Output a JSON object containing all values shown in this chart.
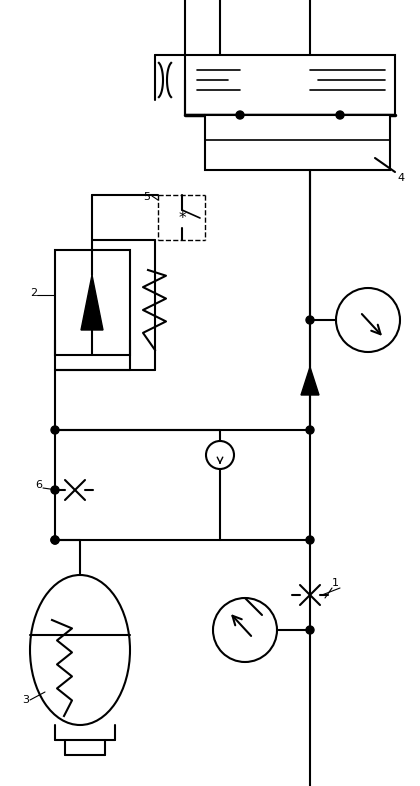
{
  "bg_color": "#ffffff",
  "line_color": "#000000",
  "lw": 1.5,
  "figsize": [
    4.2,
    7.86
  ],
  "dpi": 100
}
